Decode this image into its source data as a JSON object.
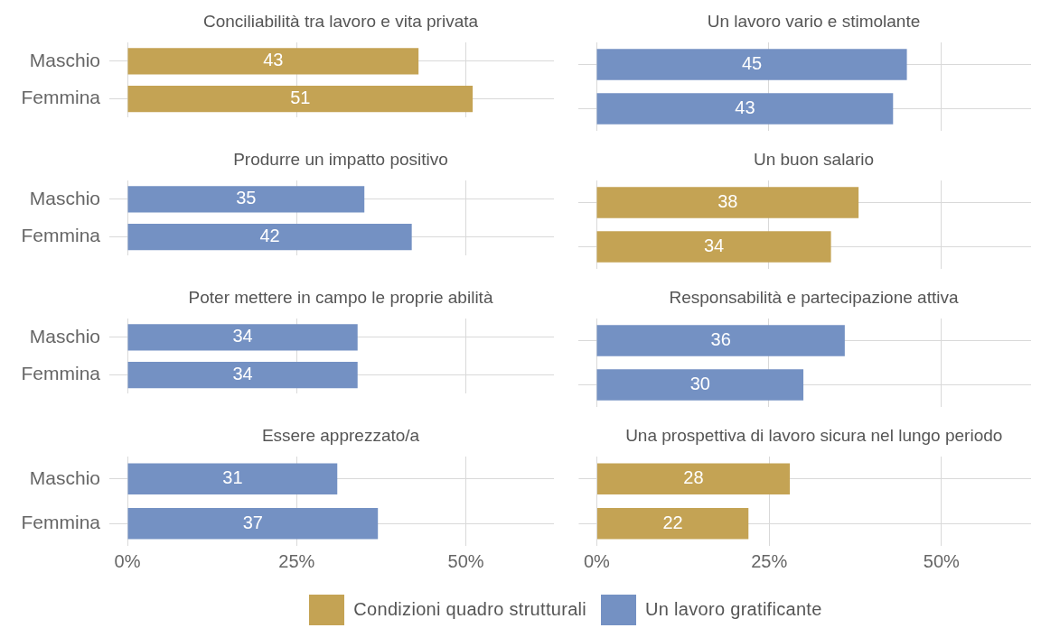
{
  "chart_data": [
    {
      "type": "bar",
      "orientation": "horizontal",
      "title": "Conciliabilità tra lavoro e vita privata",
      "categories": [
        "Maschio",
        "Femmina"
      ],
      "series": [
        {
          "name": "Condizioni quadro strutturali",
          "color": "#c4a354",
          "values": [
            43,
            51
          ]
        }
      ],
      "xlim": [
        0,
        63
      ],
      "xticks": [
        {
          "value": 0,
          "label": "0%"
        },
        {
          "value": 25,
          "label": "25%"
        },
        {
          "value": 50,
          "label": "50%"
        }
      ],
      "grid": true,
      "data_labels": true,
      "tick_labels": "y",
      "legend": "bottom"
    },
    {
      "type": "bar",
      "orientation": "horizontal",
      "title": "Un lavoro vario e stimolante",
      "categories": [
        "Maschio",
        "Femmina"
      ],
      "series": [
        {
          "name": "Un lavoro gratificante",
          "color": "#7491c3",
          "values": [
            45,
            43
          ]
        }
      ],
      "xlim": [
        0,
        63
      ],
      "xticks": [
        {
          "value": 0,
          "label": "0%"
        },
        {
          "value": 25,
          "label": "25%"
        },
        {
          "value": 50,
          "label": "50%"
        }
      ],
      "grid": true,
      "data_labels": true,
      "tick_labels": false,
      "legend": "bottom"
    },
    {
      "type": "bar",
      "orientation": "horizontal",
      "title": "Produrre un impatto positivo",
      "categories": [
        "Maschio",
        "Femmina"
      ],
      "series": [
        {
          "name": "Un lavoro gratificante",
          "color": "#7491c3",
          "values": [
            35,
            42
          ]
        }
      ],
      "xlim": [
        0,
        63
      ],
      "xticks": [
        {
          "value": 0,
          "label": "0%"
        },
        {
          "value": 25,
          "label": "25%"
        },
        {
          "value": 50,
          "label": "50%"
        }
      ],
      "grid": true,
      "data_labels": true,
      "tick_labels": "y",
      "legend": "bottom"
    },
    {
      "type": "bar",
      "orientation": "horizontal",
      "title": "Un buon salario",
      "categories": [
        "Maschio",
        "Femmina"
      ],
      "series": [
        {
          "name": "Condizioni quadro strutturali",
          "color": "#c4a354",
          "values": [
            38,
            34
          ]
        }
      ],
      "xlim": [
        0,
        63
      ],
      "xticks": [
        {
          "value": 0,
          "label": "0%"
        },
        {
          "value": 25,
          "label": "25%"
        },
        {
          "value": 50,
          "label": "50%"
        }
      ],
      "grid": true,
      "data_labels": true,
      "tick_labels": false,
      "legend": "bottom"
    },
    {
      "type": "bar",
      "orientation": "horizontal",
      "title": "Poter mettere in campo le proprie abilità",
      "categories": [
        "Maschio",
        "Femmina"
      ],
      "series": [
        {
          "name": "Un lavoro gratificante",
          "color": "#7491c3",
          "values": [
            34,
            34
          ]
        }
      ],
      "xlim": [
        0,
        63
      ],
      "xticks": [
        {
          "value": 0,
          "label": "0%"
        },
        {
          "value": 25,
          "label": "25%"
        },
        {
          "value": 50,
          "label": "50%"
        }
      ],
      "grid": true,
      "data_labels": true,
      "tick_labels": "y",
      "legend": "bottom"
    },
    {
      "type": "bar",
      "orientation": "horizontal",
      "title": "Responsabilità e partecipazione attiva",
      "categories": [
        "Maschio",
        "Femmina"
      ],
      "series": [
        {
          "name": "Un lavoro gratificante",
          "color": "#7491c3",
          "values": [
            36,
            30
          ]
        }
      ],
      "xlim": [
        0,
        63
      ],
      "xticks": [
        {
          "value": 0,
          "label": "0%"
        },
        {
          "value": 25,
          "label": "25%"
        },
        {
          "value": 50,
          "label": "50%"
        }
      ],
      "grid": true,
      "data_labels": true,
      "tick_labels": false,
      "legend": "bottom"
    },
    {
      "type": "bar",
      "orientation": "horizontal",
      "title": "Essere apprezzato/a",
      "categories": [
        "Maschio",
        "Femmina"
      ],
      "series": [
        {
          "name": "Un lavoro gratificante",
          "color": "#7491c3",
          "values": [
            31,
            37
          ]
        }
      ],
      "xlim": [
        0,
        63
      ],
      "xticks": [
        {
          "value": 0,
          "label": "0%"
        },
        {
          "value": 25,
          "label": "25%"
        },
        {
          "value": 50,
          "label": "50%"
        }
      ],
      "grid": true,
      "data_labels": true,
      "legend": "bottom"
    },
    {
      "type": "bar",
      "orientation": "horizontal",
      "title": "Una prospettiva di lavoro sicura nel lungo periodo",
      "categories": [
        "Maschio",
        "Femmina"
      ],
      "series": [
        {
          "name": "Condizioni quadro strutturali",
          "color": "#c4a354",
          "values": [
            28,
            22
          ]
        }
      ],
      "xlim": [
        0,
        63
      ],
      "xticks": [
        {
          "value": 0,
          "label": "0%"
        },
        {
          "value": 25,
          "label": "25%"
        },
        {
          "value": 50,
          "label": "50%"
        }
      ],
      "grid": true,
      "data_labels": true,
      "tick_labels": "x",
      "legend": "bottom"
    }
  ]
}
